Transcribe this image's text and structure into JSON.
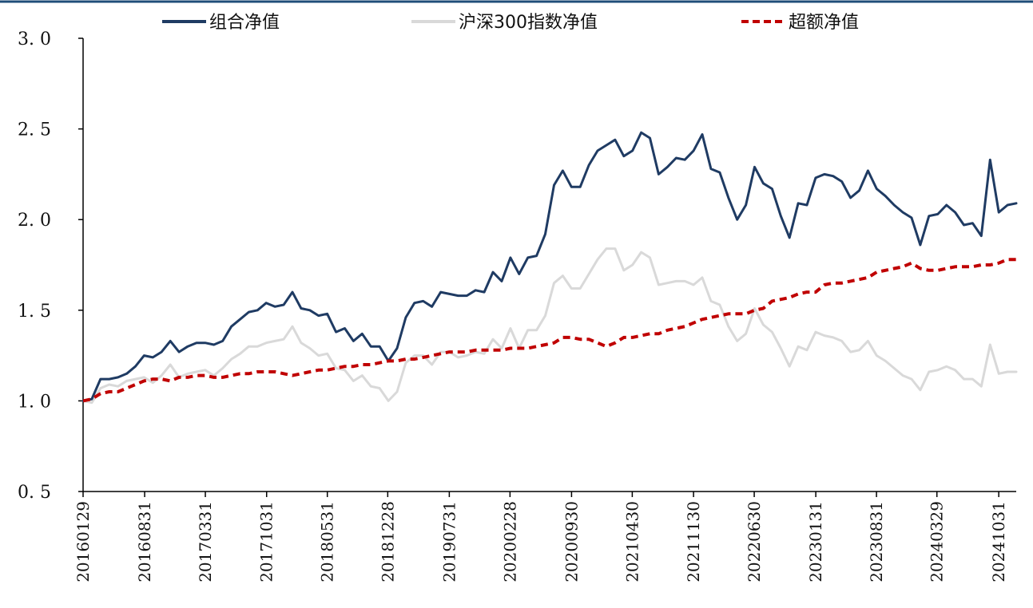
{
  "colors": {
    "portfolio": "#1f3b63",
    "index": "#d9d9d9",
    "excess": "#c00000",
    "top_border": "#1f4e79"
  },
  "chart_data": {
    "type": "line",
    "title": "",
    "xlabel": "",
    "ylabel": "",
    "ylim": [
      0.5,
      3.0
    ],
    "yticks": [
      "0. 5",
      "1. 0",
      "1. 5",
      "2. 0",
      "2. 5",
      "3. 0"
    ],
    "xticks": [
      "20160129",
      "20160831",
      "20170331",
      "20171031",
      "20180531",
      "20181228",
      "20190731",
      "20200228",
      "20200930",
      "20210430",
      "20211130",
      "20220630",
      "20230131",
      "20230831",
      "20240329",
      "20241031"
    ],
    "x_start": "20160129",
    "x_end": "20241231",
    "x_interval": "monthly",
    "legend_position": "top",
    "grid": false,
    "series": [
      {
        "name": "组合净值",
        "style": "solid",
        "values": [
          1.0,
          1.01,
          1.12,
          1.12,
          1.13,
          1.15,
          1.19,
          1.25,
          1.24,
          1.27,
          1.33,
          1.27,
          1.3,
          1.32,
          1.32,
          1.31,
          1.33,
          1.41,
          1.45,
          1.49,
          1.5,
          1.54,
          1.52,
          1.53,
          1.6,
          1.51,
          1.5,
          1.47,
          1.48,
          1.38,
          1.4,
          1.33,
          1.37,
          1.3,
          1.3,
          1.22,
          1.29,
          1.46,
          1.54,
          1.55,
          1.52,
          1.6,
          1.59,
          1.58,
          1.58,
          1.61,
          1.6,
          1.71,
          1.66,
          1.79,
          1.7,
          1.79,
          1.8,
          1.92,
          2.19,
          2.27,
          2.18,
          2.18,
          2.3,
          2.38,
          2.41,
          2.44,
          2.35,
          2.38,
          2.48,
          2.45,
          2.25,
          2.29,
          2.34,
          2.33,
          2.38,
          2.47,
          2.28,
          2.26,
          2.12,
          2.0,
          2.08,
          2.29,
          2.2,
          2.17,
          2.02,
          1.9,
          2.09,
          2.08,
          2.23,
          2.25,
          2.24,
          2.21,
          2.12,
          2.16,
          2.27,
          2.17,
          2.13,
          2.08,
          2.04,
          2.01,
          1.86,
          2.02,
          2.03,
          2.08,
          2.04,
          1.97,
          1.98,
          1.91,
          2.33,
          2.04,
          2.08,
          2.09
        ]
      },
      {
        "name": "沪深300指数净值",
        "style": "solid",
        "values": [
          1.0,
          0.99,
          1.07,
          1.09,
          1.08,
          1.11,
          1.12,
          1.13,
          1.1,
          1.14,
          1.2,
          1.13,
          1.15,
          1.16,
          1.17,
          1.14,
          1.18,
          1.23,
          1.26,
          1.3,
          1.3,
          1.32,
          1.33,
          1.34,
          1.41,
          1.32,
          1.29,
          1.25,
          1.26,
          1.18,
          1.17,
          1.11,
          1.14,
          1.08,
          1.07,
          1.0,
          1.05,
          1.21,
          1.25,
          1.25,
          1.2,
          1.27,
          1.27,
          1.24,
          1.25,
          1.27,
          1.26,
          1.34,
          1.29,
          1.4,
          1.29,
          1.39,
          1.39,
          1.47,
          1.65,
          1.69,
          1.62,
          1.62,
          1.7,
          1.78,
          1.84,
          1.84,
          1.72,
          1.75,
          1.82,
          1.79,
          1.64,
          1.65,
          1.66,
          1.66,
          1.64,
          1.68,
          1.55,
          1.53,
          1.41,
          1.33,
          1.37,
          1.51,
          1.42,
          1.38,
          1.29,
          1.19,
          1.3,
          1.28,
          1.38,
          1.36,
          1.35,
          1.33,
          1.27,
          1.28,
          1.33,
          1.25,
          1.22,
          1.18,
          1.14,
          1.12,
          1.06,
          1.16,
          1.17,
          1.19,
          1.17,
          1.12,
          1.12,
          1.08,
          1.31,
          1.15,
          1.16,
          1.16
        ]
      },
      {
        "name": "超额净值",
        "style": "dashed",
        "values": [
          1.0,
          1.01,
          1.04,
          1.05,
          1.05,
          1.07,
          1.09,
          1.11,
          1.12,
          1.12,
          1.11,
          1.13,
          1.13,
          1.14,
          1.14,
          1.13,
          1.13,
          1.14,
          1.15,
          1.15,
          1.16,
          1.16,
          1.16,
          1.15,
          1.14,
          1.15,
          1.16,
          1.17,
          1.17,
          1.18,
          1.19,
          1.19,
          1.2,
          1.2,
          1.21,
          1.22,
          1.22,
          1.23,
          1.23,
          1.24,
          1.25,
          1.26,
          1.27,
          1.27,
          1.27,
          1.28,
          1.28,
          1.28,
          1.28,
          1.29,
          1.29,
          1.29,
          1.3,
          1.31,
          1.32,
          1.35,
          1.35,
          1.34,
          1.34,
          1.32,
          1.3,
          1.32,
          1.35,
          1.35,
          1.36,
          1.37,
          1.37,
          1.39,
          1.4,
          1.41,
          1.43,
          1.45,
          1.46,
          1.47,
          1.48,
          1.48,
          1.48,
          1.5,
          1.51,
          1.55,
          1.56,
          1.57,
          1.59,
          1.6,
          1.6,
          1.64,
          1.65,
          1.65,
          1.66,
          1.67,
          1.68,
          1.71,
          1.72,
          1.73,
          1.74,
          1.76,
          1.73,
          1.72,
          1.72,
          1.73,
          1.74,
          1.74,
          1.74,
          1.75,
          1.75,
          1.76,
          1.78,
          1.78
        ]
      }
    ]
  }
}
